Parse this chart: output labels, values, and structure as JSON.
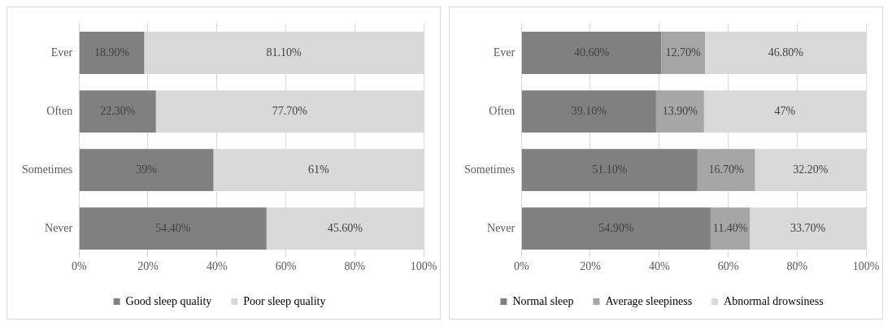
{
  "chart_data": [
    {
      "type": "bar",
      "orientation": "horizontal",
      "stacked": true,
      "categories": [
        "Ever",
        "Often",
        "Sometimes",
        "Never"
      ],
      "series": [
        {
          "name": "Good sleep quality",
          "color": "#808080",
          "values": [
            18.9,
            22.3,
            39,
            54.4
          ],
          "value_labels": [
            "18.90%",
            "22.30%",
            "39%",
            "54.40%"
          ]
        },
        {
          "name": "Poor sleep quality",
          "color": "#d9d9d9",
          "values": [
            81.1,
            77.7,
            61,
            45.6
          ],
          "value_labels": [
            "81.10%",
            "77.70%",
            "61%",
            "45.60%"
          ]
        }
      ],
      "xlim": [
        0,
        100
      ],
      "xticks": [
        {
          "value": 0,
          "label": "0%"
        },
        {
          "value": 20,
          "label": "20%"
        },
        {
          "value": 40,
          "label": "40%"
        },
        {
          "value": 60,
          "label": "60%"
        },
        {
          "value": 80,
          "label": "80%"
        },
        {
          "value": 100,
          "label": "100%"
        }
      ],
      "grid": "x",
      "legend": "bottom"
    },
    {
      "type": "bar",
      "orientation": "horizontal",
      "stacked": true,
      "categories": [
        "Ever",
        "Often",
        "Sometimes",
        "Never"
      ],
      "series": [
        {
          "name": "Normal sleep",
          "color": "#808080",
          "values": [
            40.6,
            39.1,
            51.1,
            54.9
          ],
          "value_labels": [
            "40.60%",
            "39.10%",
            "51.10%",
            "54.90%"
          ]
        },
        {
          "name": "Average sleepiness",
          "color": "#a6a6a6",
          "values": [
            12.7,
            13.9,
            16.7,
            11.4
          ],
          "value_labels": [
            "12.70%",
            "13.90%",
            "16.70%",
            "11.40%"
          ]
        },
        {
          "name": "Abnormal drowsiness",
          "color": "#d9d9d9",
          "values": [
            46.8,
            47,
            32.2,
            33.7
          ],
          "value_labels": [
            "46.80%",
            "47%",
            "32.20%",
            "33.70%"
          ]
        }
      ],
      "xlim": [
        0,
        100
      ],
      "xticks": [
        {
          "value": 0,
          "label": "0%"
        },
        {
          "value": 20,
          "label": "20%"
        },
        {
          "value": 40,
          "label": "40%"
        },
        {
          "value": 60,
          "label": "60%"
        },
        {
          "value": 80,
          "label": "80%"
        },
        {
          "value": 100,
          "label": "100%"
        }
      ],
      "grid": "x",
      "legend": "bottom"
    }
  ]
}
